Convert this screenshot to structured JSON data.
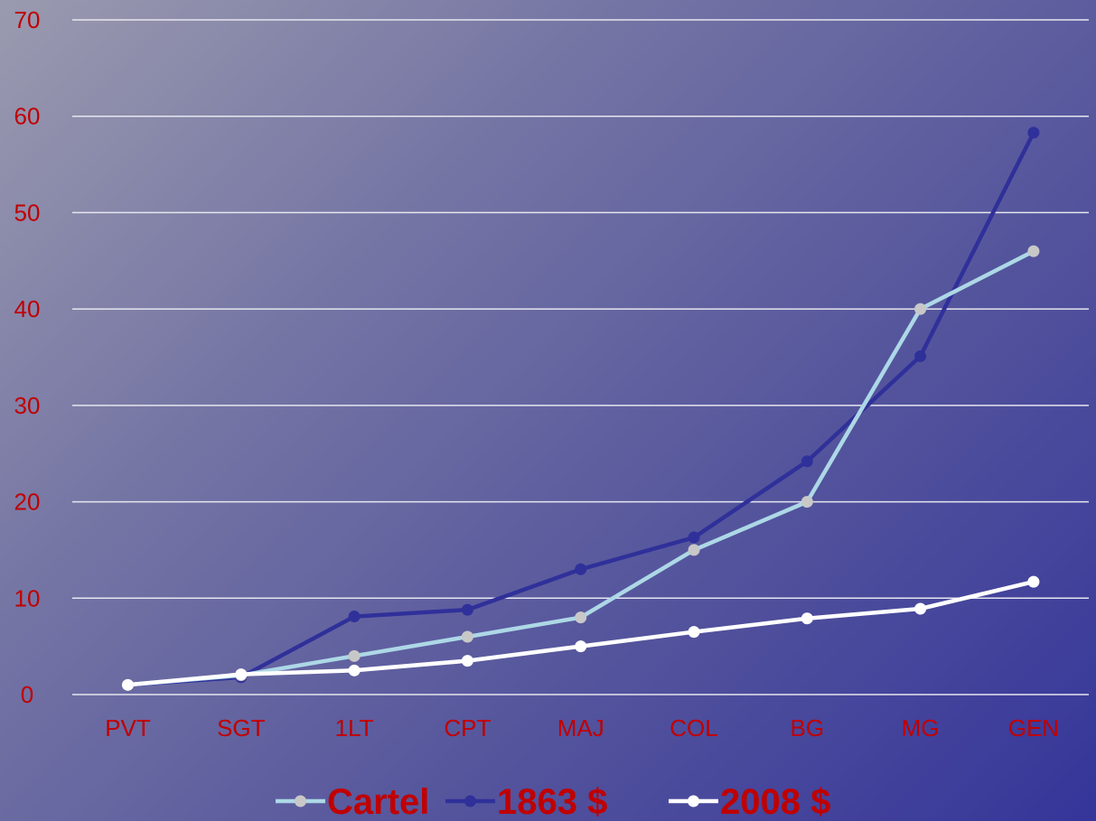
{
  "chart_data": {
    "type": "line",
    "categories": [
      "PVT",
      "SGT",
      "1LT",
      "CPT",
      "MAJ",
      "COL",
      "BG",
      "MG",
      "GEN"
    ],
    "ylim": [
      0,
      70
    ],
    "yticks": [
      0,
      10,
      20,
      30,
      40,
      50,
      60,
      70
    ],
    "grid": true,
    "legend_position": "bottom",
    "series": [
      {
        "name": "Cartel",
        "color": "#add8e6",
        "marker_color": "#c8c8c8",
        "values": [
          1,
          2,
          4,
          6,
          8,
          15,
          20,
          40,
          46
        ]
      },
      {
        "name": "1863 $",
        "color": "#30309a",
        "marker_color": "#30309a",
        "values": [
          1,
          1.8,
          8.1,
          8.8,
          13,
          16.3,
          24.2,
          35.1,
          58.3
        ]
      },
      {
        "name": "2008 $",
        "color": "#ffffff",
        "marker_color": "#ffffff",
        "values": [
          1,
          2.1,
          2.5,
          3.5,
          5,
          6.5,
          7.9,
          8.9,
          11.7
        ]
      }
    ]
  }
}
